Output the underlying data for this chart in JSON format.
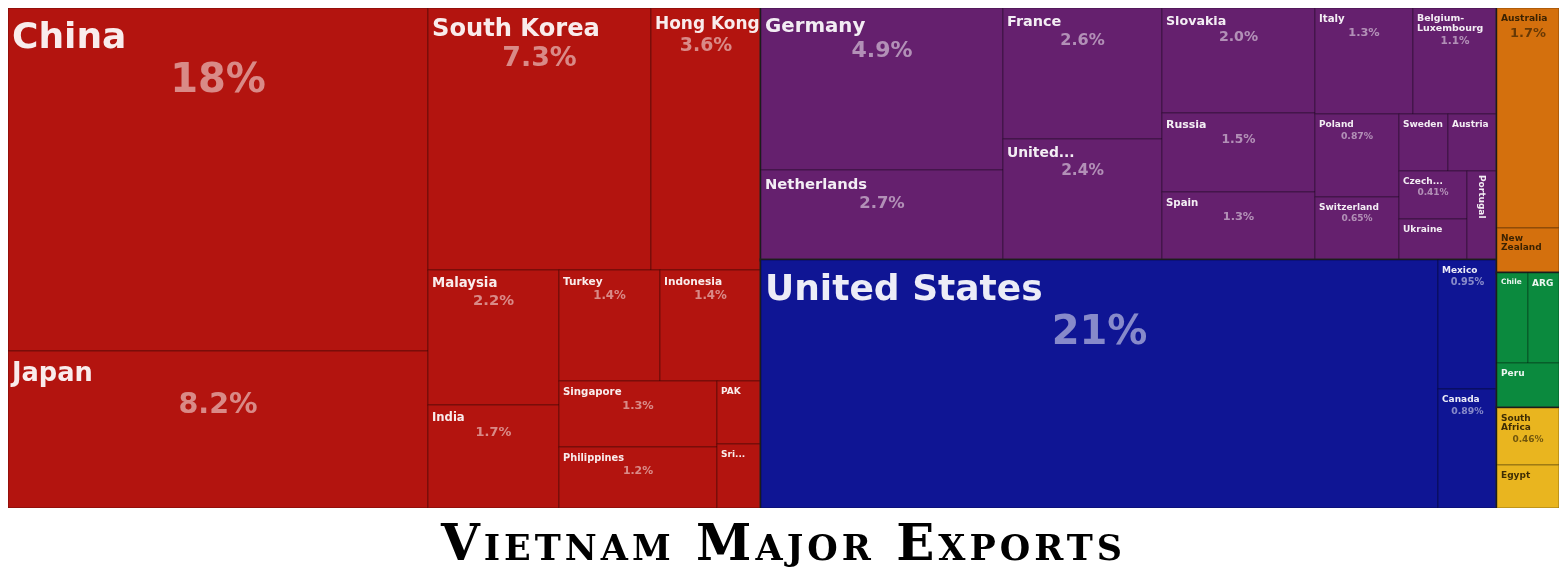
{
  "chart_data": {
    "type": "other",
    "title": "Vietnam Major Exports",
    "categories": [
      "China",
      "Japan",
      "South Korea",
      "Hong Kong",
      "Malaysia",
      "India",
      "Turkey",
      "Indonesia",
      "Singapore",
      "Philippines",
      "PAK",
      "Sri...",
      "Germany",
      "Netherlands",
      "France",
      "United...",
      "Slovakia",
      "Russia",
      "Spain",
      "Italy",
      "Belgium-Luxembourg",
      "Poland",
      "Switzerland",
      "Sweden",
      "Austria",
      "Czech...",
      "Ukraine",
      "Portugal",
      "United States",
      "Mexico",
      "Canada",
      "Australia",
      "New Zealand",
      "Chile",
      "ARG",
      "Peru",
      "South Africa",
      "Egypt"
    ],
    "values": [
      18,
      8.2,
      7.3,
      3.6,
      2.2,
      1.7,
      1.4,
      1.4,
      1.3,
      1.2,
      null,
      null,
      4.9,
      2.7,
      2.6,
      2.4,
      2.0,
      1.5,
      1.3,
      1.3,
      1.1,
      0.87,
      0.65,
      null,
      null,
      0.41,
      null,
      null,
      21,
      0.95,
      0.89,
      1.7,
      null,
      null,
      null,
      null,
      0.46,
      null
    ],
    "value_labels": [
      "18%",
      "8.2%",
      "7.3%",
      "3.6%",
      "2.2%",
      "1.7%",
      "1.4%",
      "1.4%",
      "1.3%",
      "1.2%",
      null,
      null,
      "4.9%",
      "2.7%",
      "2.6%",
      "2.4%",
      "2.0%",
      "1.5%",
      "1.3%",
      "1.3%",
      "1.1%",
      "0.87%",
      "0.65%",
      null,
      null,
      "0.41%",
      null,
      null,
      "21%",
      "0.95%",
      "0.89%",
      "1.7%",
      null,
      null,
      null,
      null,
      "0.46%",
      null
    ],
    "colors": [
      "#b3140f",
      "#b3140f",
      "#b3140f",
      "#b3140f",
      "#b3140f",
      "#b3140f",
      "#b3140f",
      "#b3140f",
      "#b3140f",
      "#b3140f",
      "#b3140f",
      "#b3140f",
      "#65206e",
      "#65206e",
      "#65206e",
      "#65206e",
      "#65206e",
      "#65206e",
      "#65206e",
      "#65206e",
      "#65206e",
      "#65206e",
      "#65206e",
      "#65206e",
      "#65206e",
      "#65206e",
      "#65206e",
      "#65206e",
      "#0f1594",
      "#0f1594",
      "#0f1594",
      "#d4700d",
      "#d4700d",
      "#0b8a3e",
      "#0b8a3e",
      "#0b8a3e",
      "#e9b51f",
      "#e9b51f"
    ]
  }
}
